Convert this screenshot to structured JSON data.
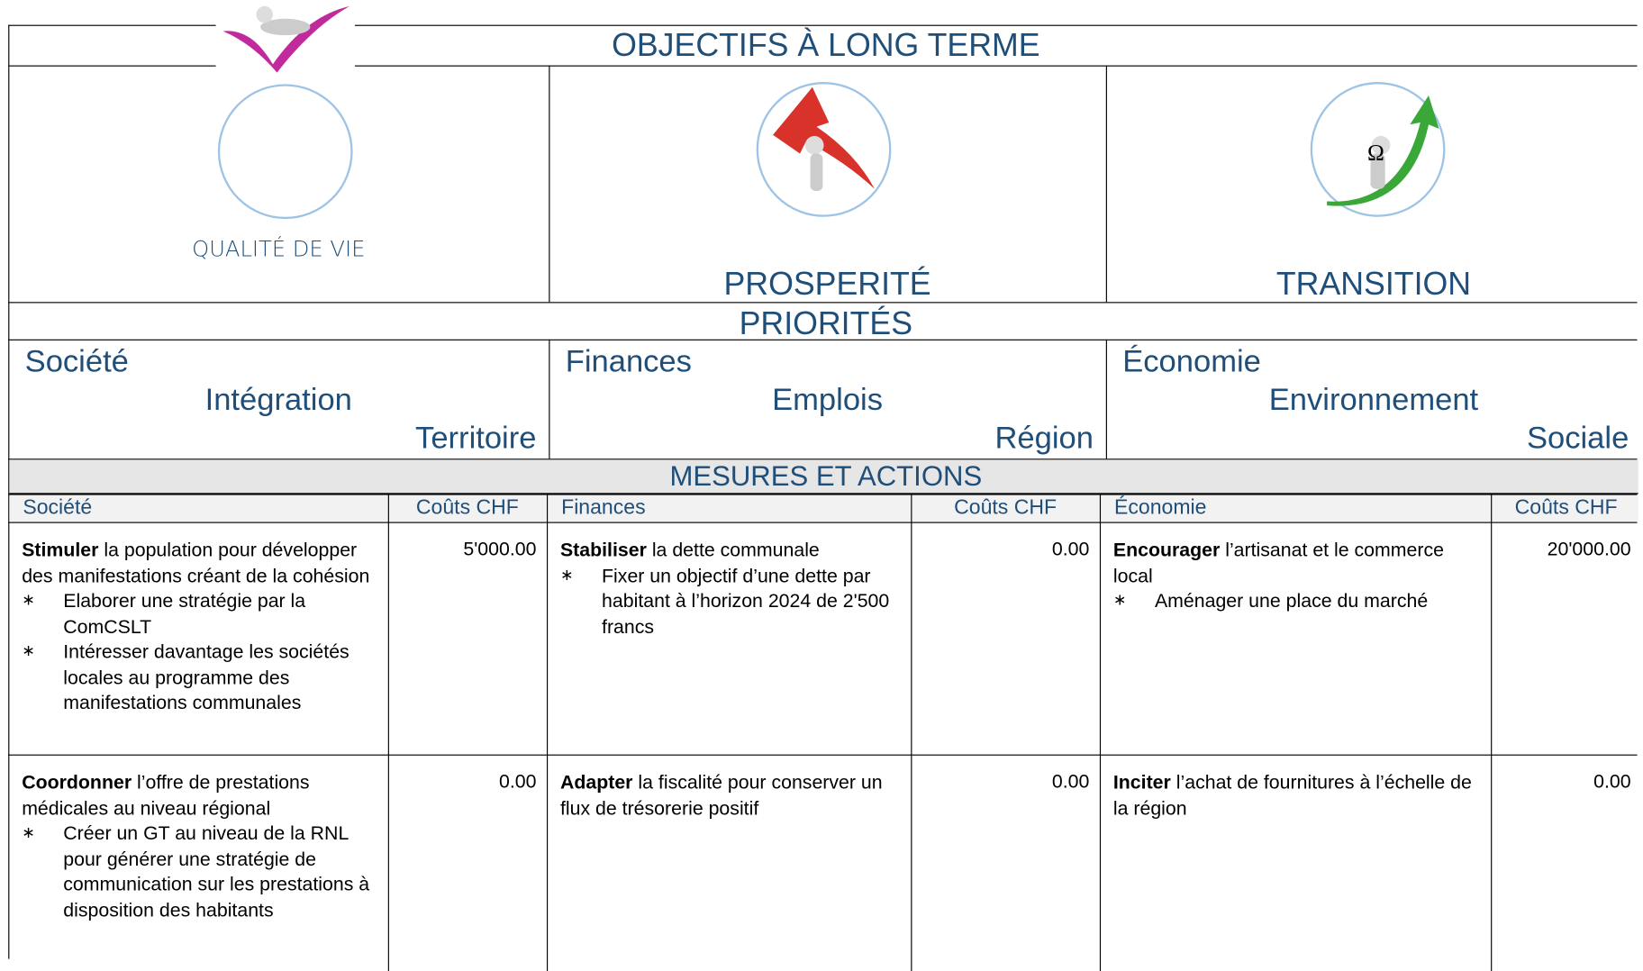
{
  "header": {
    "title": "OBJECTIFS À LONG TERME"
  },
  "objectives": [
    {
      "label": "QUALITÉ DE VIE"
    },
    {
      "label": "PROSPERITÉ"
    },
    {
      "label": "TRANSITION",
      "icon_text": "Ω"
    }
  ],
  "priorities": {
    "title": "PRIORITÉS",
    "groups": [
      [
        "Société",
        "Intégration",
        "Territoire"
      ],
      [
        "Finances",
        "Emplois",
        "Région"
      ],
      [
        "Économie",
        "Environnement",
        "Sociale"
      ]
    ]
  },
  "measures": {
    "title": "MESURES ET ACTIONS",
    "columns": [
      {
        "name": "Société",
        "cost_label": "Coûts CHF",
        "rows": [
          {
            "verb": "Stimuler",
            "text": " la population pour développer des manifestations créant de la cohésion",
            "bullets": [
              "Elaborer une stratégie par la ComCSLT",
              "Intéresser davantage les sociétés locales au programme des manifestations communales"
            ],
            "cost": "5'000.00"
          },
          {
            "verb": "Coordonner",
            "text": " l’offre de prestations médicales au niveau régional",
            "bullets": [
              "Créer un GT au niveau de la RNL pour générer une stratégie de communication sur les prestations à disposition des habitants"
            ],
            "cost": "0.00"
          }
        ]
      },
      {
        "name": "Finances",
        "cost_label": "Coûts CHF",
        "rows": [
          {
            "verb": "Stabiliser",
            "text": " la dette communale",
            "bullets": [
              "Fixer un objectif d’une dette par habitant à l’horizon 2024 de 2'500 francs"
            ],
            "cost": "0.00"
          },
          {
            "verb": "Adapter",
            "text": " la fiscalité pour conserver un flux de trésorerie positif",
            "bullets": [],
            "cost": "0.00"
          }
        ]
      },
      {
        "name": "Économie",
        "cost_label": "Coûts CHF",
        "rows": [
          {
            "verb": "Encourager",
            "text": " l’artisanat et le commerce local",
            "bullets": [
              "Aménager une place du marché"
            ],
            "cost": "20'000.00"
          },
          {
            "verb": "Inciter",
            "text": " l’achat de fournitures à l’échelle de la région",
            "bullets": [],
            "cost": "0.00"
          }
        ]
      }
    ]
  }
}
